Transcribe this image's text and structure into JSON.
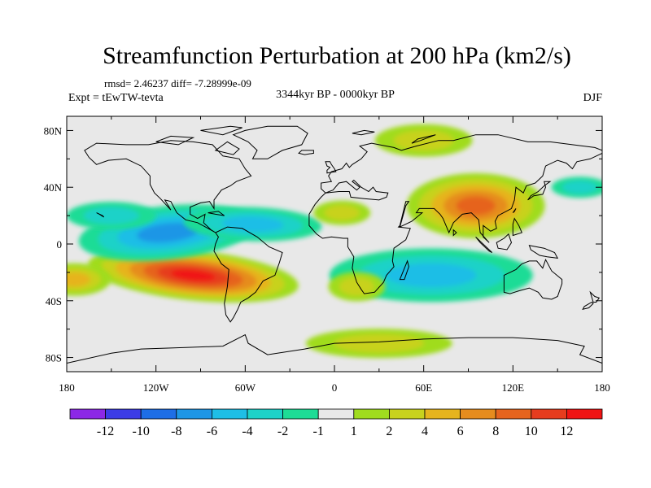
{
  "chart_data": {
    "type": "heatmap",
    "title": "Streamfunction Perturbation at 200 hPa (km2/s)",
    "stats": "rmsd= 2.46237 diff= -7.28999e-09",
    "expt": "Expt = tEwTW-tevta",
    "period": "3344kyr BP - 0000kyr BP",
    "season": "DJF",
    "xlim": [
      -180,
      180
    ],
    "ylim": [
      -90,
      90
    ],
    "x_ticks": [
      {
        "value": -180,
        "label": "180"
      },
      {
        "value": -120,
        "label": "120W"
      },
      {
        "value": -60,
        "label": "60W"
      },
      {
        "value": 0,
        "label": "0"
      },
      {
        "value": 60,
        "label": "60E"
      },
      {
        "value": 120,
        "label": "120E"
      },
      {
        "value": 180,
        "label": "180"
      }
    ],
    "y_ticks": [
      {
        "value": 80,
        "label": "80N"
      },
      {
        "value": 40,
        "label": "40N"
      },
      {
        "value": 0,
        "label": "0"
      },
      {
        "value": -40,
        "label": "40S"
      },
      {
        "value": -80,
        "label": "80S"
      }
    ],
    "colorbar": {
      "levels": [
        "-12",
        "-10",
        "-8",
        "-6",
        "-4",
        "-2",
        "-1",
        "1",
        "2",
        "4",
        "6",
        "8",
        "10",
        "12"
      ],
      "colors": [
        "#8c28e6",
        "#3c3ce6",
        "#1e6ee6",
        "#1e96e6",
        "#1ebee6",
        "#1ed2c8",
        "#1edc96",
        "#e8e8e8",
        "#a0dc1e",
        "#c8d21e",
        "#e6b41e",
        "#e68c1e",
        "#e6641e",
        "#e63c1e",
        "#f01414"
      ]
    },
    "anomalies": [
      {
        "name": "South America high",
        "lon": -95,
        "lat": -22,
        "value": 12
      },
      {
        "name": "Asia high",
        "lon": 95,
        "lat": 27,
        "value": 8
      },
      {
        "name": "East Pacific low",
        "lon": -112,
        "lat": 8,
        "value": -6
      },
      {
        "name": "Atlantic low",
        "lon": -55,
        "lat": 14,
        "value": -4
      },
      {
        "name": "Indian Ocean low",
        "lon": 65,
        "lat": -22,
        "value": -4
      },
      {
        "name": "Arctic high",
        "lon": 60,
        "lat": 73,
        "value": 2
      },
      {
        "name": "Northeast Pacific low",
        "lon": -150,
        "lat": 20,
        "value": -2
      },
      {
        "name": "North Pacific low",
        "lon": 165,
        "lat": 40,
        "value": -2
      },
      {
        "name": "Southeast Pacific high",
        "lon": -175,
        "lat": -25,
        "value": 4
      },
      {
        "name": "Southern Ocean high",
        "lon": 30,
        "lat": -70,
        "value": 2
      },
      {
        "name": "South Atlantic high",
        "lon": 15,
        "lat": -30,
        "value": 2
      },
      {
        "name": "North Africa high",
        "lon": 5,
        "lat": 22,
        "value": 2
      }
    ]
  }
}
